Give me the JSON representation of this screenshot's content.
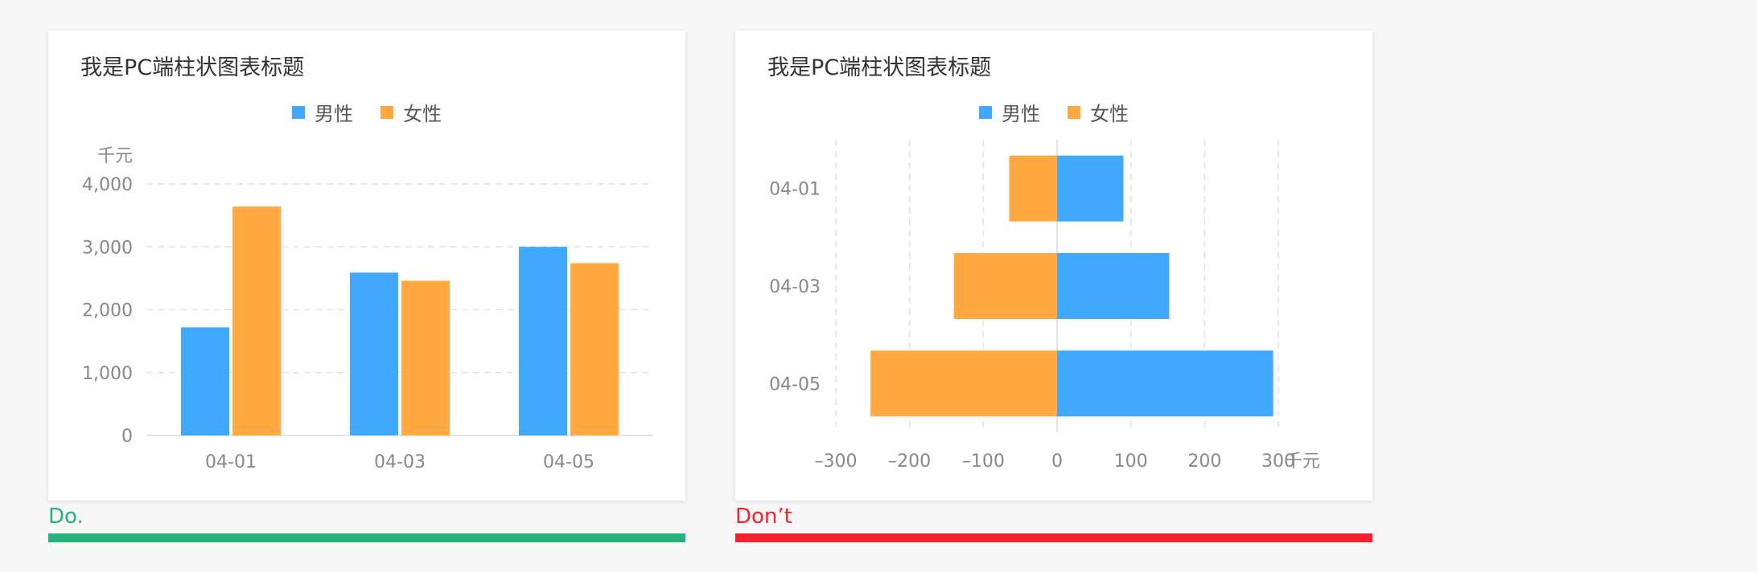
{
  "colors": {
    "male": "#40a9ff",
    "female": "#ffa940",
    "do": "#27b27a",
    "dont": "#f5222d"
  },
  "legend": [
    {
      "label": "男性",
      "color": "#40a9ff"
    },
    {
      "label": "女性",
      "color": "#ffa940"
    }
  ],
  "captions": {
    "do": "Do.",
    "dont": "Don’t"
  },
  "chart_data": [
    {
      "type": "bar",
      "orientation": "vertical",
      "title": "我是PC端柱状图表标题",
      "unit": "千元",
      "categories": [
        "04-01",
        "04-03",
        "04-05"
      ],
      "series": [
        {
          "name": "男性",
          "values": [
            1720,
            2590,
            3000
          ]
        },
        {
          "name": "女性",
          "values": [
            3640,
            2460,
            2740
          ]
        }
      ],
      "ylim": [
        0,
        4000
      ],
      "yticks": [
        "0",
        "1,000",
        "2,000",
        "3,000",
        "4,000"
      ],
      "grid": true,
      "legend_position": "top"
    },
    {
      "type": "bar",
      "orientation": "horizontal",
      "title": "我是PC端柱状图表标题",
      "unit": "千元",
      "categories": [
        "04-01",
        "04-03",
        "04-05"
      ],
      "series": [
        {
          "name": "男性",
          "values": [
            90,
            152,
            293
          ]
        },
        {
          "name": "女性",
          "values": [
            -65,
            -140,
            -253
          ]
        }
      ],
      "xlim": [
        -300,
        300
      ],
      "xticks": [
        "–300",
        "–200",
        "–100",
        "0",
        "100",
        "200",
        "300"
      ],
      "grid": true,
      "legend_position": "top"
    }
  ]
}
